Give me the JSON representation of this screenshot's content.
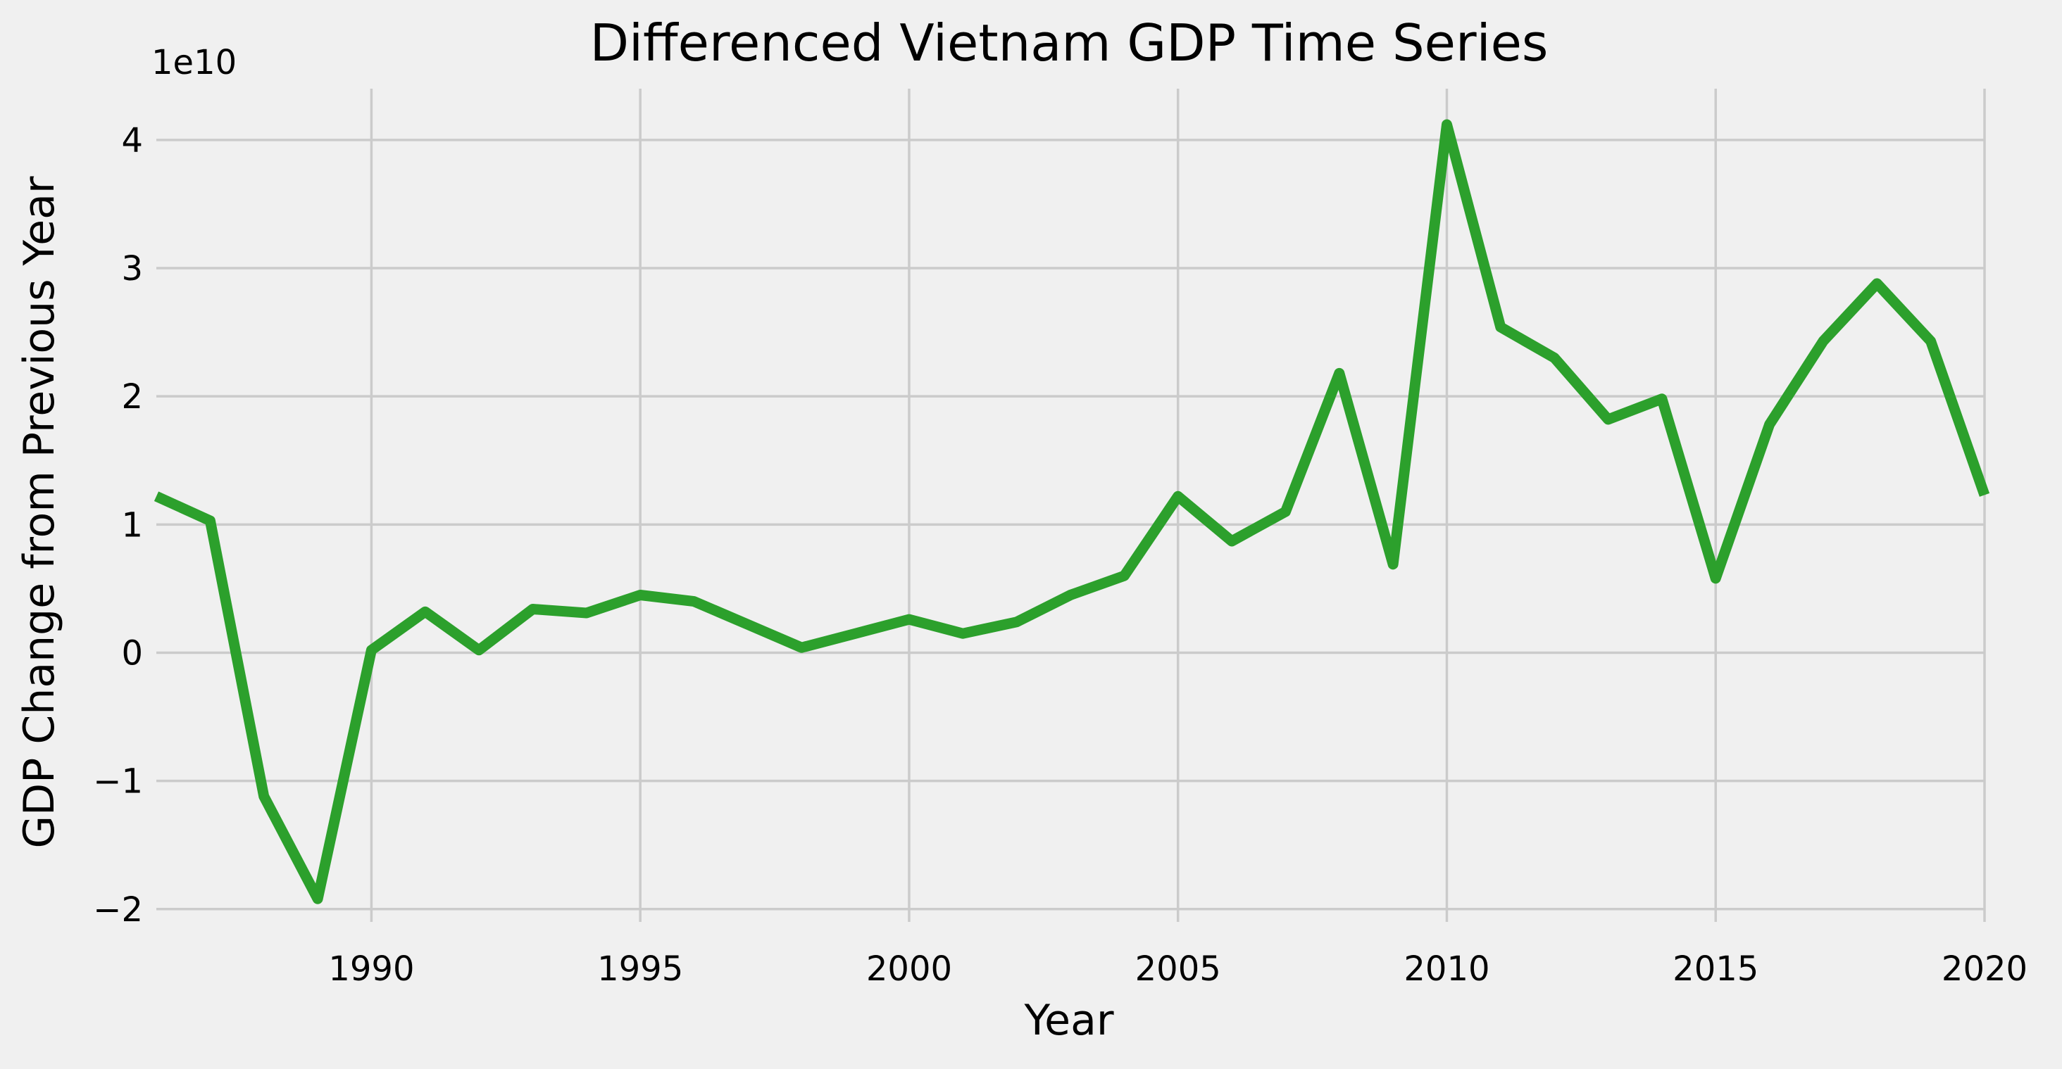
{
  "chart_data": {
    "type": "line",
    "title": "Differenced Vietnam GDP Time Series",
    "xlabel": "Year",
    "ylabel": "GDP Change from Previous Year",
    "y_offset_label": "1e10",
    "xlim": [
      1986,
      2020
    ],
    "ylim": [
      -2.1,
      4.4
    ],
    "x_ticks": [
      1990,
      1995,
      2000,
      2005,
      2010,
      2015,
      2020
    ],
    "y_ticks": [
      -2,
      -1,
      0,
      1,
      2,
      3,
      4
    ],
    "y_tick_labels": [
      "−2",
      "−1",
      "0",
      "1",
      "2",
      "3",
      "4"
    ],
    "grid": true,
    "line_color": "#2ca02c",
    "background_color": "#f0f0f0",
    "series": [
      {
        "x": [
          1986,
          1987,
          1988,
          1989,
          1990,
          1991,
          1992,
          1993,
          1994,
          1995,
          1996,
          1997,
          1998,
          1999,
          2000,
          2001,
          2002,
          2003,
          2004,
          2005,
          2006,
          2007,
          2008,
          2009,
          2010,
          2011,
          2012,
          2013,
          2014,
          2015,
          2016,
          2017,
          2018,
          2019,
          2020
        ],
        "values": [
          1.22,
          1.03,
          -1.12,
          -1.92,
          0.02,
          0.32,
          0.02,
          0.34,
          0.31,
          0.45,
          0.4,
          0.22,
          0.04,
          0.15,
          0.26,
          0.15,
          0.24,
          0.45,
          0.6,
          1.22,
          0.87,
          1.1,
          2.18,
          0.69,
          4.12,
          2.54,
          2.3,
          1.82,
          1.98,
          0.58,
          1.78,
          2.43,
          2.88,
          2.43,
          1.23
        ]
      }
    ]
  }
}
